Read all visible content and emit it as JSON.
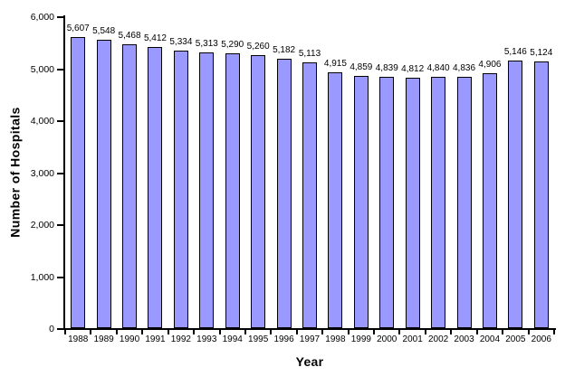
{
  "chart_data": {
    "type": "bar",
    "title": "",
    "xlabel": "Year",
    "ylabel": "Number of Hospitals",
    "categories": [
      "1988",
      "1989",
      "1990",
      "1991",
      "1992",
      "1993",
      "1994",
      "1995",
      "1996",
      "1997",
      "1998",
      "1999",
      "2000",
      "2001",
      "2002",
      "2003",
      "2004",
      "2005",
      "2006"
    ],
    "values": [
      5607,
      5548,
      5468,
      5412,
      5334,
      5313,
      5290,
      5260,
      5182,
      5113,
      4915,
      4859,
      4839,
      4812,
      4840,
      4836,
      4906,
      5146,
      5124
    ],
    "data_labels": [
      "5,607",
      "5,548",
      "5,468",
      "5,412",
      "5,334",
      "5,313",
      "5,290",
      "5,260",
      "5,182",
      "5,113",
      "4,915",
      "4,859",
      "4,839",
      "4,812",
      "4,840",
      "4,836",
      "4,906",
      "5,146",
      "5,124"
    ],
    "ylim": [
      0,
      6000
    ],
    "ytick_step": 1000,
    "ytick_labels": [
      "0",
      "1,000",
      "2,000",
      "3,000",
      "4,000",
      "5,000",
      "6,000"
    ],
    "grid": "off",
    "legend": "none",
    "colors": {
      "bar_fill": "#9999FF",
      "bar_border": "#000000",
      "axis": "#000000",
      "text": "#000000",
      "background": "#FFFFFF"
    }
  }
}
